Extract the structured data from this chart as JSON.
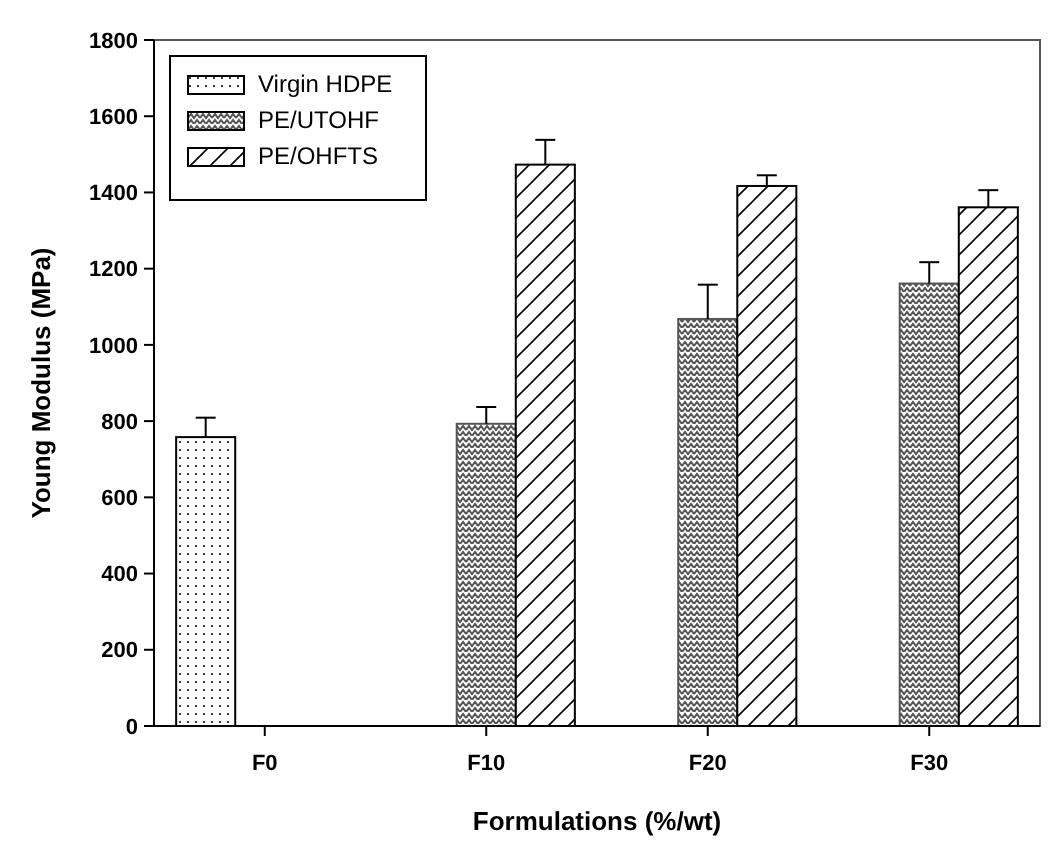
{
  "chart_data": {
    "type": "bar",
    "xlabel": "Formulations (%/wt)",
    "ylabel": "Young Modulus (MPa)",
    "categories": [
      "F0",
      "F10",
      "F20",
      "F30"
    ],
    "series": [
      {
        "name": "Virgin HDPE",
        "color": "#000000",
        "values": [
          758,
          null,
          null,
          null
        ],
        "errors": [
          [
            758,
            809
          ],
          null,
          null,
          null
        ]
      },
      {
        "name": "PE/UTOHF",
        "color": "#555555",
        "values": [
          null,
          793,
          1068,
          1161
        ],
        "errors": [
          null,
          [
            793,
            837
          ],
          [
            1068,
            1158
          ],
          [
            1161,
            1217
          ]
        ]
      },
      {
        "name": "PE/OHFTS",
        "color": "#000000",
        "values": [
          null,
          1473,
          1417,
          1361
        ],
        "errors": [
          null,
          [
            1473,
            1538
          ],
          [
            1417,
            1445
          ],
          [
            1361,
            1406
          ]
        ]
      }
    ],
    "ylim": [
      0,
      1800
    ],
    "yticks": [
      0,
      200,
      400,
      600,
      800,
      1000,
      1200,
      1400,
      1600,
      1800
    ],
    "grid": false,
    "legend": "top left"
  }
}
